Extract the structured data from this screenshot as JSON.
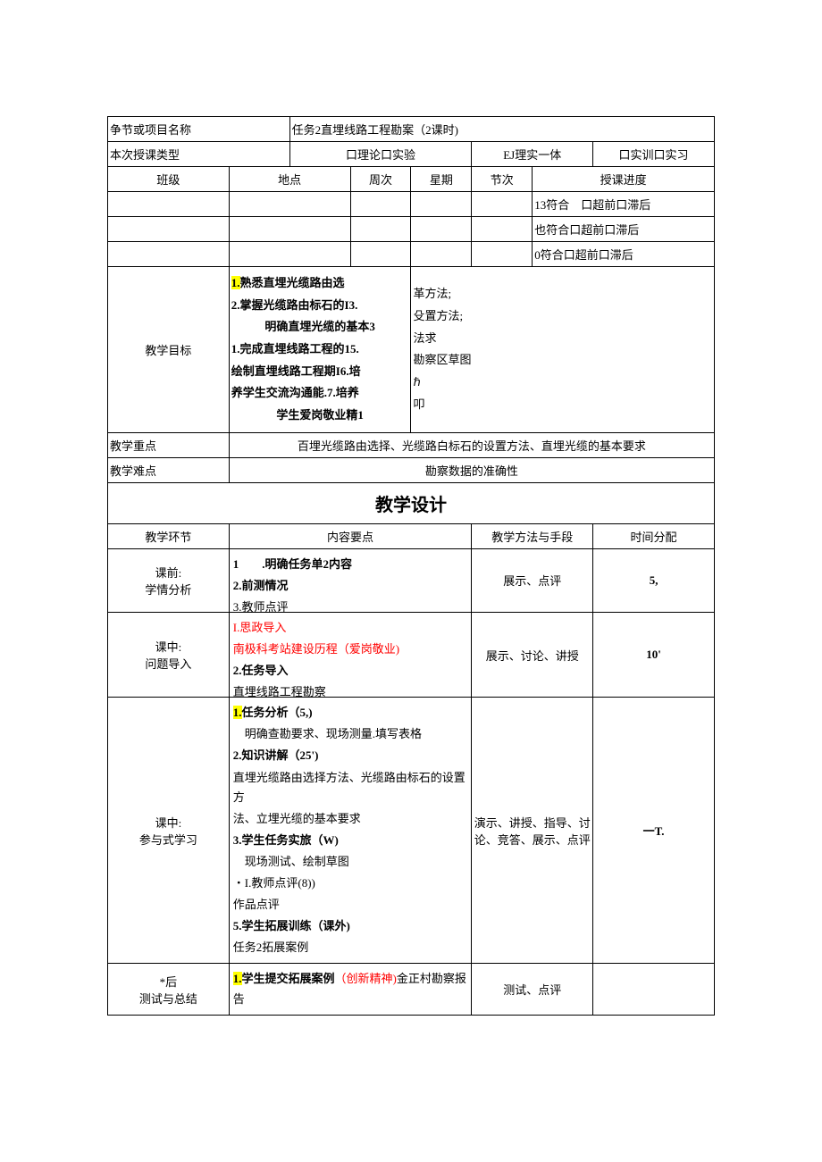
{
  "header": {
    "row1_label": "争节或项目名称",
    "row1_value": "任务2直埋线路工程勘案（2课时)",
    "row2_label": "本次授课类型",
    "row2_opts": "口理论口实验",
    "row2_mid": "EJ理实一体",
    "row2_right": "口实训口实习",
    "cols": {
      "c1": "班级",
      "c2": "地点",
      "c3": "周次",
      "c4": "星期",
      "c5": "节次",
      "c6": "授课进度"
    },
    "prog1": "13符合　口超前口滞后",
    "prog2": "也符合口超前口滞后",
    "prog3": "0符合口超前口滞后"
  },
  "goals": {
    "label": "教学目标",
    "left_lines": [
      "1.熟悉直埋光缆路由选",
      "2.掌握光缆路由标石的I3.",
      "明确直埋光缆的基本3",
      "1.完成直埋线路工程的15.",
      "绘制直埋线路工程期I6.培",
      "养学生交流沟通能.7.培养",
      "学生爱岗敬业精1"
    ],
    "right_lines": [
      "革方法;",
      "殳置方法;",
      "法求",
      "勘察区草图",
      "ℏ",
      "叩"
    ],
    "hl_index": 0
  },
  "keypoint": {
    "label": "教学重点",
    "value": "百埋光缆路由选择、光缆路白标石的设置方法、直埋光缆的基本要求"
  },
  "difficulty": {
    "label": "教学难点",
    "value": "勘察数据的准确性"
  },
  "design_title": "教学设计",
  "design_header": {
    "c1": "教学环节",
    "c2": "内容要点",
    "c3": "教学方法与手段",
    "c4": "时间分配"
  },
  "rows": [
    {
      "stage": "课前:\n学情分析",
      "content": [
        {
          "t": "1　　.明确任务单2内容",
          "b": true
        },
        {
          "t": "2.前测情况",
          "b": true
        },
        {
          "t": "3.教师点评",
          "b": false,
          "cut": true
        }
      ],
      "method": "展示、点评",
      "time": "5,"
    },
    {
      "stage": "课中:\n问题导入",
      "content": [
        {
          "t": "I.思政导入",
          "red": true
        },
        {
          "t": "南极科考站建设历程（爱岗敬业)",
          "red": true
        },
        {
          "t": "2.任务导入",
          "b": true
        },
        {
          "t": "直埋线路工程勘察",
          "cut": true
        }
      ],
      "method": "展示、讨论、讲授",
      "time": "10'"
    },
    {
      "stage": "课中:\n参与式学习",
      "content": [
        {
          "t": "1.任务分析（5,)",
          "b": true,
          "hl": true,
          "hlpart": "1."
        },
        {
          "t": "明确查勘要求、现场测量.填写表格",
          "indent": true
        },
        {
          "t": "2.知识讲解（25')",
          "b": true
        },
        {
          "t": "直埋光缆路由选择方法、光缆路由标石的设置方"
        },
        {
          "t": "法、立埋光缆的基本要求"
        },
        {
          "t": "3.学生任务实旅（W)",
          "b": true
        },
        {
          "t": "现场测试、绘制草图",
          "indent": true
        },
        {
          "t": "・I.教师点评(8))"
        },
        {
          "t": "作品点评"
        },
        {
          "t": "5.学生拓展训练（课外)",
          "b": true
        },
        {
          "t": "任务2拓展案例"
        }
      ],
      "method": "演示、讲授、指导、讨论、竞答、展示、点评",
      "time": "一T."
    },
    {
      "stage": "*后\n测试与总结",
      "content": [
        {
          "t": "",
          "compound": true,
          "parts": [
            {
              "t": "1.",
              "hl": true,
              "b": true
            },
            {
              "t": "学生提交拓展案例",
              "b": true
            },
            {
              "t": "（创新精神)",
              "red": true
            },
            {
              "t": "金正村勘察报告"
            }
          ]
        }
      ],
      "method": "测试、点评",
      "time": ""
    }
  ]
}
